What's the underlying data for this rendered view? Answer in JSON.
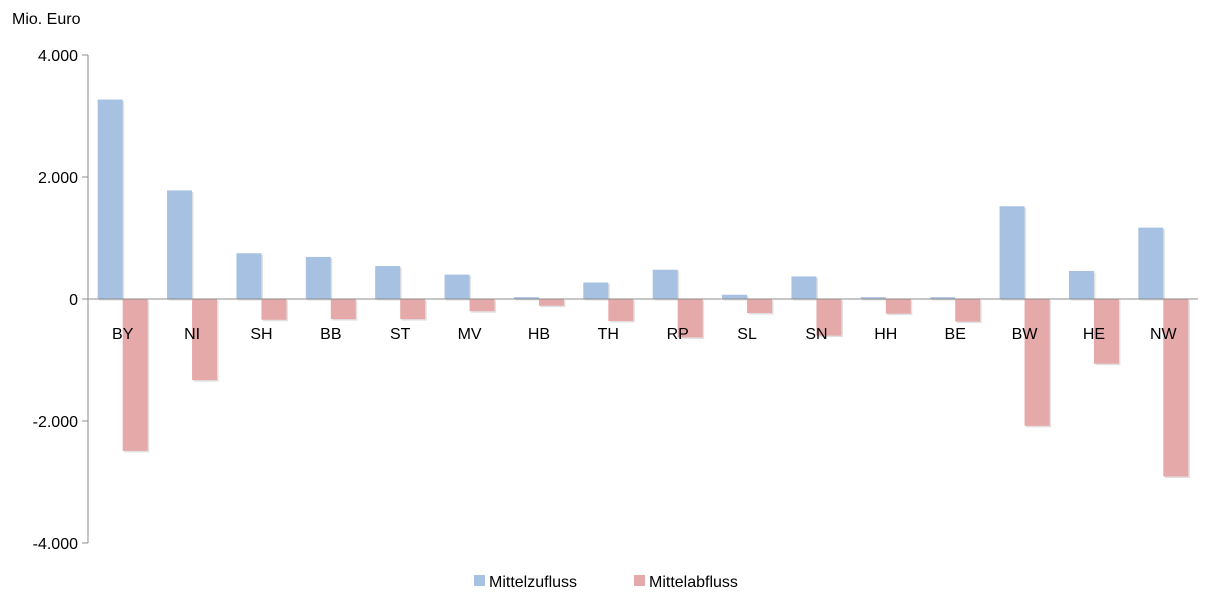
{
  "chart_data": {
    "type": "bar",
    "title": "",
    "ylabel": "Mio. Euro",
    "xlabel": "",
    "ylim": [
      -4000,
      4000
    ],
    "yticks": [
      4000,
      2000,
      0,
      -2000,
      -4000
    ],
    "ytick_labels": [
      "4.000",
      "2.000",
      "0",
      "-2.000",
      "-4.000"
    ],
    "categories": [
      "BY",
      "NI",
      "SH",
      "BB",
      "ST",
      "MV",
      "HB",
      "TH",
      "RP",
      "SL",
      "SN",
      "HH",
      "BE",
      "BW",
      "HE",
      "NW"
    ],
    "series": [
      {
        "name": "Mittelzufluss",
        "color": "#a7c1e2",
        "values": [
          3270,
          1780,
          750,
          690,
          540,
          400,
          30,
          270,
          480,
          70,
          370,
          30,
          30,
          1520,
          460,
          1170
        ]
      },
      {
        "name": "Mittelabfluss",
        "color": "#e6a9a9",
        "values": [
          -2490,
          -1330,
          -340,
          -330,
          -330,
          -200,
          -110,
          -360,
          -630,
          -230,
          -600,
          -240,
          -370,
          -2080,
          -1060,
          -2910
        ]
      }
    ],
    "legend_position": "bottom-center",
    "grid": false
  }
}
